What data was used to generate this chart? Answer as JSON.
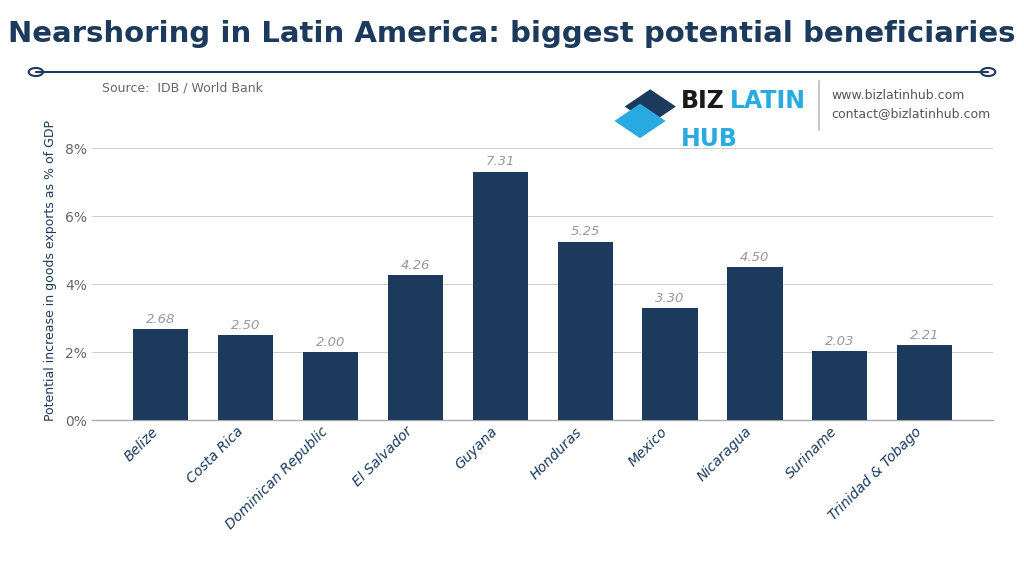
{
  "title": "Nearshoring in Latin America: biggest potential beneficiaries",
  "ylabel": "Potential increase in goods exports as % of GDP",
  "source": "Source:  IDB / World Bank",
  "categories": [
    "Belize",
    "Costa Rica",
    "Dominican Republic",
    "El Salvador",
    "Guyana",
    "Honduras",
    "Mexico",
    "Nicaragua",
    "Suriname",
    "Trinidad & Tobago"
  ],
  "values": [
    2.68,
    2.5,
    2.0,
    4.26,
    7.31,
    5.25,
    3.3,
    4.5,
    2.03,
    2.21
  ],
  "bar_color": "#1b3a5c",
  "yticks": [
    0,
    2,
    4,
    6,
    8
  ],
  "ytick_labels": [
    "0%",
    "2%",
    "4%",
    "6%",
    "8%"
  ],
  "ylim": [
    0,
    8.8
  ],
  "title_color": "#1b3a5c",
  "title_fontsize": 21,
  "label_fontsize": 10,
  "value_fontsize": 9.5,
  "axis_label_fontsize": 9,
  "background_color": "#ffffff",
  "website": "www.bizlatinhub.com",
  "contact": "contact@bizlatinhub.com",
  "line_color": "#1b3a5c",
  "biz_color": "#1a1a1a",
  "latin_color": "#29aae1",
  "hub_color": "#29aae1",
  "value_color": "#999999",
  "source_color": "#666666",
  "xtick_color": "#1b3a5c",
  "ytick_color": "#666666",
  "grid_color": "#cccccc",
  "sep_color": "#bbbbbb"
}
